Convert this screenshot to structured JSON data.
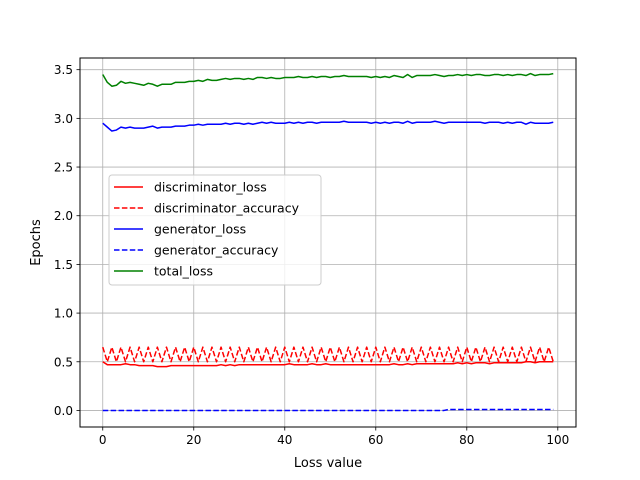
{
  "chart_data": {
    "type": "line",
    "title": "",
    "xlabel": "Loss value",
    "ylabel": "Epochs",
    "xlim": [
      -5,
      104
    ],
    "ylim": [
      -0.17,
      3.62
    ],
    "grid": true,
    "legend_position": "center-left",
    "x_ticks": [
      0,
      20,
      40,
      60,
      80,
      100
    ],
    "y_ticks": [
      0.0,
      0.5,
      1.0,
      1.5,
      2.0,
      2.5,
      3.0,
      3.5
    ],
    "x_tick_labels": [
      "0",
      "20",
      "40",
      "60",
      "80",
      "100"
    ],
    "y_tick_labels": [
      "0.0",
      "0.5",
      "1.0",
      "1.5",
      "2.0",
      "2.5",
      "3.0",
      "3.5"
    ],
    "series": [
      {
        "name": "discriminator_loss",
        "color": "#ff0000",
        "dash": "solid",
        "values": [
          0.5,
          0.47,
          0.47,
          0.47,
          0.47,
          0.48,
          0.47,
          0.47,
          0.46,
          0.46,
          0.46,
          0.46,
          0.45,
          0.45,
          0.45,
          0.46,
          0.46,
          0.46,
          0.46,
          0.46,
          0.46,
          0.46,
          0.46,
          0.46,
          0.46,
          0.46,
          0.47,
          0.46,
          0.47,
          0.46,
          0.47,
          0.47,
          0.47,
          0.47,
          0.47,
          0.47,
          0.47,
          0.47,
          0.47,
          0.47,
          0.47,
          0.48,
          0.47,
          0.47,
          0.47,
          0.47,
          0.48,
          0.47,
          0.47,
          0.48,
          0.47,
          0.47,
          0.47,
          0.47,
          0.47,
          0.47,
          0.47,
          0.47,
          0.47,
          0.47,
          0.47,
          0.47,
          0.47,
          0.47,
          0.48,
          0.47,
          0.47,
          0.48,
          0.47,
          0.48,
          0.48,
          0.48,
          0.48,
          0.48,
          0.48,
          0.48,
          0.48,
          0.48,
          0.49,
          0.48,
          0.49,
          0.48,
          0.49,
          0.49,
          0.49,
          0.48,
          0.49,
          0.49,
          0.49,
          0.49,
          0.49,
          0.49,
          0.49,
          0.5,
          0.5,
          0.49,
          0.5,
          0.5,
          0.5,
          0.5
        ]
      },
      {
        "name": "discriminator_accuracy",
        "color": "#ff0000",
        "dash": "dashed",
        "values": [
          0.65,
          0.5,
          0.65,
          0.5,
          0.65,
          0.5,
          0.65,
          0.5,
          0.65,
          0.5,
          0.65,
          0.5,
          0.65,
          0.5,
          0.65,
          0.5,
          0.65,
          0.5,
          0.65,
          0.5,
          0.65,
          0.5,
          0.65,
          0.5,
          0.65,
          0.5,
          0.65,
          0.5,
          0.65,
          0.5,
          0.65,
          0.5,
          0.65,
          0.5,
          0.65,
          0.5,
          0.65,
          0.5,
          0.65,
          0.5,
          0.65,
          0.5,
          0.65,
          0.5,
          0.65,
          0.5,
          0.65,
          0.5,
          0.65,
          0.5,
          0.65,
          0.5,
          0.65,
          0.5,
          0.65,
          0.5,
          0.65,
          0.5,
          0.65,
          0.5,
          0.65,
          0.5,
          0.65,
          0.5,
          0.65,
          0.5,
          0.65,
          0.5,
          0.65,
          0.5,
          0.65,
          0.5,
          0.65,
          0.5,
          0.65,
          0.5,
          0.65,
          0.5,
          0.65,
          0.5,
          0.65,
          0.5,
          0.65,
          0.5,
          0.65,
          0.5,
          0.65,
          0.5,
          0.65,
          0.5,
          0.65,
          0.5,
          0.65,
          0.5,
          0.65,
          0.5,
          0.65,
          0.5,
          0.65,
          0.5
        ]
      },
      {
        "name": "generator_loss",
        "color": "#0000ff",
        "dash": "solid",
        "values": [
          2.95,
          2.91,
          2.87,
          2.88,
          2.91,
          2.9,
          2.91,
          2.9,
          2.9,
          2.9,
          2.91,
          2.92,
          2.9,
          2.91,
          2.91,
          2.91,
          2.92,
          2.92,
          2.92,
          2.93,
          2.93,
          2.94,
          2.93,
          2.94,
          2.94,
          2.94,
          2.94,
          2.95,
          2.94,
          2.95,
          2.95,
          2.94,
          2.95,
          2.94,
          2.95,
          2.96,
          2.95,
          2.96,
          2.95,
          2.95,
          2.95,
          2.96,
          2.95,
          2.96,
          2.95,
          2.96,
          2.96,
          2.95,
          2.96,
          2.96,
          2.96,
          2.96,
          2.96,
          2.97,
          2.96,
          2.96,
          2.96,
          2.96,
          2.96,
          2.95,
          2.96,
          2.95,
          2.96,
          2.95,
          2.96,
          2.96,
          2.95,
          2.97,
          2.95,
          2.96,
          2.96,
          2.96,
          2.96,
          2.97,
          2.96,
          2.95,
          2.96,
          2.96,
          2.96,
          2.96,
          2.96,
          2.96,
          2.96,
          2.96,
          2.95,
          2.96,
          2.96,
          2.96,
          2.95,
          2.96,
          2.95,
          2.96,
          2.96,
          2.94,
          2.96,
          2.95,
          2.95,
          2.95,
          2.95,
          2.96
        ]
      },
      {
        "name": "generator_accuracy",
        "color": "#0000ff",
        "dash": "dashed",
        "values": [
          0.0,
          0.0,
          0.0,
          0.0,
          0.0,
          0.0,
          0.0,
          0.0,
          0.0,
          0.0,
          0.0,
          0.0,
          0.0,
          0.0,
          0.0,
          0.0,
          0.0,
          0.0,
          0.0,
          0.0,
          0.0,
          0.0,
          0.0,
          0.0,
          0.0,
          0.0,
          0.0,
          0.0,
          0.0,
          0.0,
          0.0,
          0.0,
          0.0,
          0.0,
          0.0,
          0.0,
          0.0,
          0.0,
          0.0,
          0.0,
          0.0,
          0.0,
          0.0,
          0.0,
          0.0,
          0.0,
          0.0,
          0.0,
          0.0,
          0.0,
          0.0,
          0.0,
          0.0,
          0.0,
          0.0,
          0.0,
          0.0,
          0.0,
          0.0,
          0.0,
          0.0,
          0.0,
          0.0,
          0.0,
          0.0,
          0.0,
          0.0,
          0.0,
          0.0,
          0.0,
          0.0,
          0.0,
          0.0,
          0.0,
          0.0,
          0.0,
          0.01,
          0.01,
          0.01,
          0.01,
          0.01,
          0.01,
          0.01,
          0.01,
          0.01,
          0.01,
          0.01,
          0.01,
          0.01,
          0.01,
          0.01,
          0.01,
          0.01,
          0.01,
          0.01,
          0.01,
          0.01,
          0.01,
          0.01,
          0.01
        ]
      },
      {
        "name": "total_loss",
        "color": "#008000",
        "dash": "solid",
        "values": [
          3.45,
          3.37,
          3.33,
          3.34,
          3.38,
          3.36,
          3.37,
          3.36,
          3.35,
          3.34,
          3.36,
          3.35,
          3.33,
          3.35,
          3.35,
          3.35,
          3.37,
          3.37,
          3.37,
          3.38,
          3.38,
          3.39,
          3.38,
          3.4,
          3.39,
          3.39,
          3.4,
          3.41,
          3.4,
          3.41,
          3.41,
          3.4,
          3.41,
          3.4,
          3.42,
          3.42,
          3.41,
          3.42,
          3.41,
          3.41,
          3.42,
          3.42,
          3.42,
          3.43,
          3.42,
          3.42,
          3.43,
          3.42,
          3.43,
          3.43,
          3.42,
          3.43,
          3.43,
          3.44,
          3.43,
          3.43,
          3.43,
          3.43,
          3.43,
          3.42,
          3.43,
          3.42,
          3.43,
          3.42,
          3.44,
          3.43,
          3.42,
          3.45,
          3.42,
          3.44,
          3.44,
          3.44,
          3.44,
          3.45,
          3.44,
          3.43,
          3.44,
          3.44,
          3.45,
          3.44,
          3.45,
          3.44,
          3.45,
          3.45,
          3.44,
          3.44,
          3.45,
          3.45,
          3.44,
          3.45,
          3.44,
          3.45,
          3.45,
          3.44,
          3.46,
          3.44,
          3.45,
          3.45,
          3.45,
          3.46
        ]
      }
    ]
  }
}
